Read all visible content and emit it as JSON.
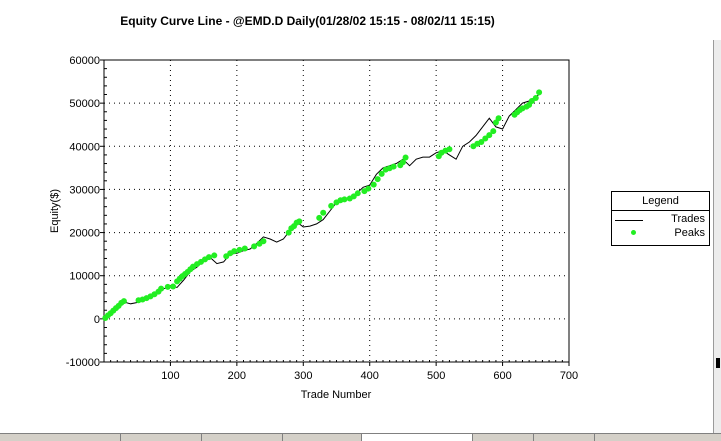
{
  "chart_data": {
    "type": "line",
    "title": "Equity Curve Line - @EMD.D Daily(01/28/02 15:15 - 08/02/11 15:15)",
    "xlabel": "Trade Number",
    "ylabel": "Equity($)",
    "xlim": [
      0,
      700
    ],
    "ylim": [
      -10000,
      60000
    ],
    "x_ticks": [
      100,
      200,
      300,
      400,
      500,
      600,
      700
    ],
    "y_ticks": [
      -10000,
      0,
      10000,
      20000,
      30000,
      40000,
      50000,
      60000
    ],
    "grid": true,
    "legend_position": "right",
    "legend": {
      "title": "Legend",
      "entries": [
        "Trades",
        "Peaks"
      ]
    },
    "series": [
      {
        "name": "Trades",
        "style": "line",
        "color": "#000000",
        "x": [
          0,
          10,
          20,
          30,
          40,
          50,
          60,
          70,
          80,
          90,
          100,
          110,
          120,
          130,
          140,
          150,
          160,
          170,
          180,
          190,
          200,
          210,
          220,
          230,
          240,
          250,
          260,
          270,
          280,
          290,
          300,
          310,
          320,
          330,
          340,
          350,
          360,
          370,
          380,
          390,
          400,
          410,
          420,
          430,
          440,
          450,
          460,
          470,
          480,
          490,
          500,
          510,
          520,
          530,
          540,
          550,
          560,
          570,
          580,
          590,
          600,
          610,
          620,
          630,
          640,
          650,
          655
        ],
        "y": [
          0,
          1200,
          2500,
          3900,
          3500,
          3800,
          4300,
          5000,
          6000,
          7000,
          7500,
          7300,
          9000,
          11000,
          12000,
          13500,
          14200,
          12800,
          13200,
          15000,
          15200,
          15800,
          16200,
          17500,
          19000,
          18500,
          17800,
          18500,
          20500,
          22500,
          21300,
          21500,
          22000,
          23000,
          25000,
          27000,
          27500,
          28000,
          29000,
          30500,
          31000,
          33500,
          35000,
          35500,
          36000,
          37000,
          35500,
          37000,
          37500,
          37500,
          38500,
          39000,
          38000,
          37000,
          40000,
          41000,
          42500,
          44500,
          46500,
          44500,
          44000,
          47000,
          48500,
          50000,
          50500,
          51500,
          52000
        ]
      },
      {
        "name": "Peaks",
        "style": "scatter",
        "color": "#22ee22",
        "x": [
          2,
          6,
          10,
          14,
          18,
          22,
          26,
          30,
          52,
          58,
          64,
          70,
          76,
          82,
          86,
          96,
          104,
          110,
          114,
          118,
          122,
          126,
          130,
          134,
          140,
          146,
          152,
          158,
          166,
          184,
          190,
          196,
          204,
          212,
          226,
          234,
          240,
          278,
          282,
          286,
          290,
          294,
          324,
          330,
          342,
          350,
          356,
          362,
          370,
          376,
          382,
          392,
          398,
          406,
          412,
          418,
          424,
          430,
          436,
          446,
          450,
          454,
          504,
          508,
          514,
          520,
          556,
          562,
          568,
          574,
          580,
          586,
          590,
          594,
          618,
          622,
          626,
          630,
          636,
          640,
          644,
          650,
          655
        ],
        "y": [
          200,
          800,
          1300,
          1900,
          2500,
          3000,
          3700,
          4100,
          4300,
          4500,
          4800,
          5200,
          5700,
          6300,
          7000,
          7400,
          7500,
          8700,
          9300,
          9900,
          10400,
          10900,
          11500,
          12100,
          12700,
          13200,
          13800,
          14300,
          14700,
          14500,
          15200,
          15700,
          16000,
          16300,
          16800,
          17400,
          18000,
          20000,
          21000,
          21500,
          22300,
          22600,
          23400,
          24600,
          26200,
          27000,
          27500,
          27700,
          27900,
          28400,
          29100,
          29600,
          30200,
          31100,
          32400,
          33600,
          34600,
          34900,
          35300,
          35600,
          36300,
          37400,
          37700,
          38500,
          39000,
          39300,
          40000,
          40600,
          41000,
          41800,
          42600,
          43500,
          45500,
          46500,
          47300,
          47900,
          48400,
          48800,
          49200,
          49600,
          50500,
          51200,
          52500
        ]
      }
    ]
  }
}
